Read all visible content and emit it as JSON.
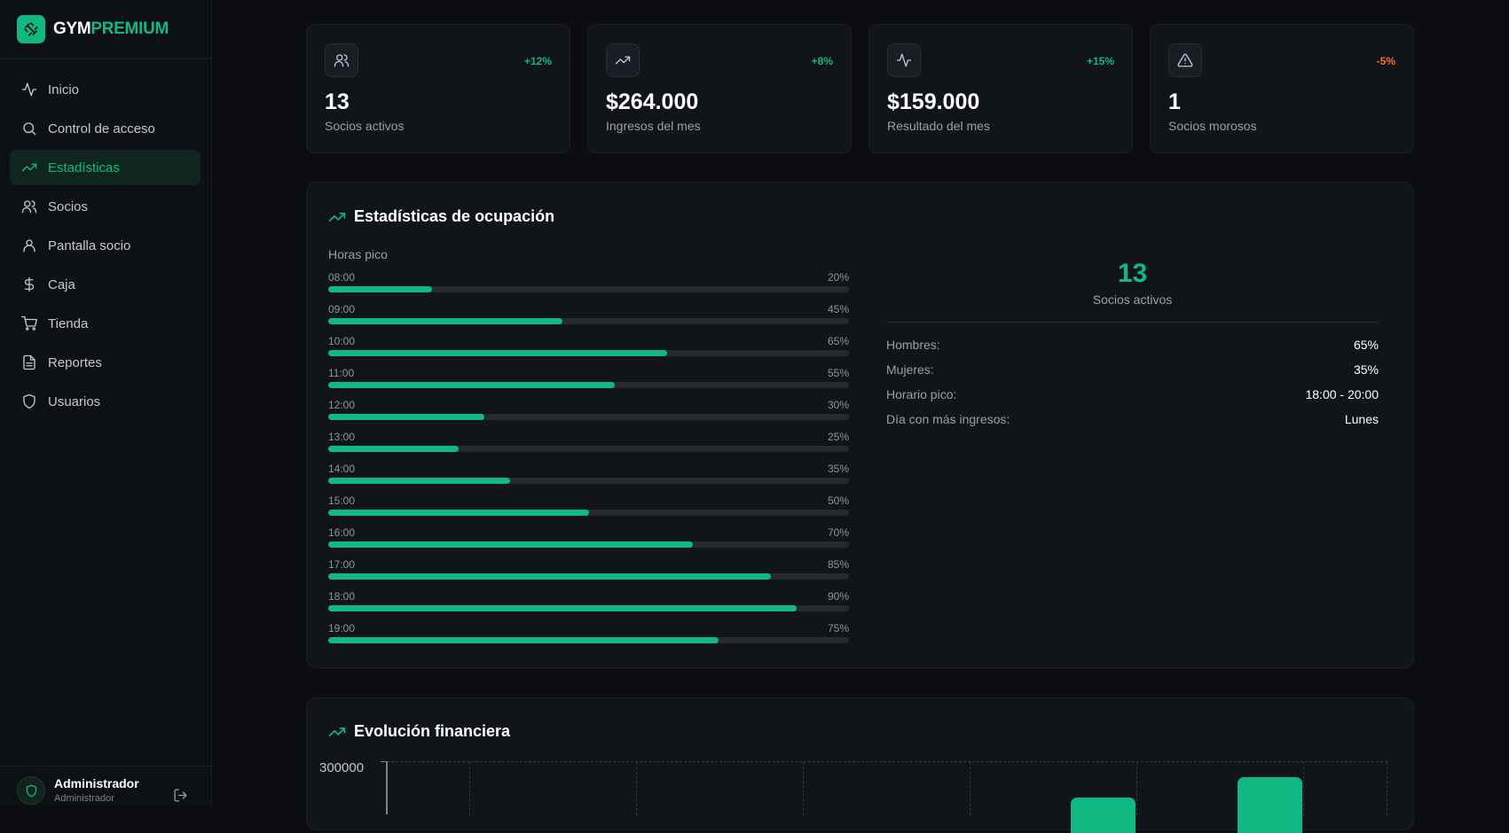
{
  "brand": {
    "part1": "GYM",
    "part2": "PREMIUM"
  },
  "sidebar": {
    "items": [
      {
        "label": "Inicio",
        "icon": "activity-icon",
        "active": false
      },
      {
        "label": "Control de acceso",
        "icon": "search-icon",
        "active": false
      },
      {
        "label": "Estadísticas",
        "icon": "trending-up-icon",
        "active": true
      },
      {
        "label": "Socios",
        "icon": "users-icon",
        "active": false
      },
      {
        "label": "Pantalla socio",
        "icon": "user-icon",
        "active": false
      },
      {
        "label": "Caja",
        "icon": "dollar-icon",
        "active": false
      },
      {
        "label": "Tienda",
        "icon": "cart-icon",
        "active": false
      },
      {
        "label": "Reportes",
        "icon": "file-icon",
        "active": false
      },
      {
        "label": "Usuarios",
        "icon": "shield-icon",
        "active": false
      }
    ],
    "user": {
      "name": "Administrador",
      "role": "Administrador"
    }
  },
  "stats": [
    {
      "value": "13",
      "label": "Socios activos",
      "change": "+12%",
      "icon": "users-icon"
    },
    {
      "value": "$264.000",
      "label": "Ingresos del mes",
      "change": "+8%",
      "icon": "trending-up-icon"
    },
    {
      "value": "$159.000",
      "label": "Resultado del mes",
      "change": "+15%",
      "icon": "activity-icon"
    },
    {
      "value": "1",
      "label": "Socios morosos",
      "change": "-5%",
      "icon": "alert-triangle-icon"
    }
  ],
  "occupancy": {
    "title": "Estadísticas de ocupación",
    "peak_label": "Horas pico",
    "hours": [
      {
        "hour": "08:00",
        "pct": "20%",
        "value": 20
      },
      {
        "hour": "09:00",
        "pct": "45%",
        "value": 45
      },
      {
        "hour": "10:00",
        "pct": "65%",
        "value": 65
      },
      {
        "hour": "11:00",
        "pct": "55%",
        "value": 55
      },
      {
        "hour": "12:00",
        "pct": "30%",
        "value": 30
      },
      {
        "hour": "13:00",
        "pct": "25%",
        "value": 25
      },
      {
        "hour": "14:00",
        "pct": "35%",
        "value": 35
      },
      {
        "hour": "15:00",
        "pct": "50%",
        "value": 50
      },
      {
        "hour": "16:00",
        "pct": "70%",
        "value": 70
      },
      {
        "hour": "17:00",
        "pct": "85%",
        "value": 85
      },
      {
        "hour": "18:00",
        "pct": "90%",
        "value": 90
      },
      {
        "hour": "19:00",
        "pct": "75%",
        "value": 75
      }
    ],
    "summary": {
      "count": "13",
      "count_label": "Socios activos",
      "rows": [
        {
          "k": "Hombres:",
          "v": "65%"
        },
        {
          "k": "Mujeres:",
          "v": "35%"
        },
        {
          "k": "Horario pico:",
          "v": "18:00 - 20:00"
        },
        {
          "k": "Día con más ingresos:",
          "v": "Lunes"
        }
      ]
    }
  },
  "finance": {
    "title": "Evolución financiera",
    "y_tick": "300000"
  },
  "colors": {
    "accent": "#10b981",
    "negative": "#f97316",
    "background": "#0b0d10",
    "card": "#111418"
  }
}
